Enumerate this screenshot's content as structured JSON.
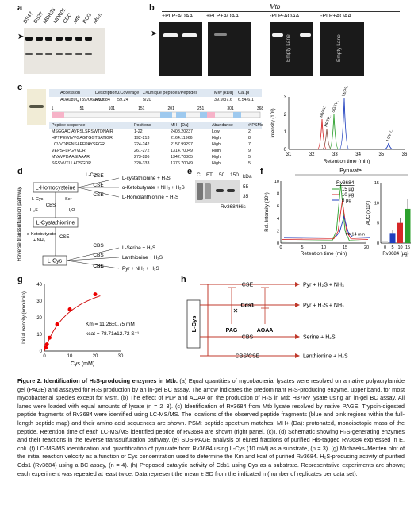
{
  "panels": {
    "a": {
      "label": "a",
      "lanes": [
        "DS47",
        "DS27",
        "MDR35",
        "MDR01",
        "CDC",
        "Mtb",
        "BCG",
        "Msm"
      ]
    },
    "b": {
      "label": "b",
      "title": "Mtb",
      "groups": [
        "+PLP-AOAA",
        "+PLP+AOAA",
        "-PLP-AOAA",
        "-PLP+AOAA"
      ],
      "empty_lane": "Empty Lane"
    },
    "c": {
      "label": "c",
      "headers": [
        "Accession",
        "Description",
        "ΣCoverage",
        "Σ#Unique peptides/Peptides",
        "MW [kDa]",
        "Cal.pI"
      ],
      "summary": [
        "A0A089QT59/O69652",
        "Rv3684",
        "59.24",
        "5/20",
        "39.9/37.6",
        "6.54/6.1"
      ],
      "ruler": [
        "1",
        "51",
        "101",
        "151",
        "201",
        "251",
        "301",
        "368"
      ],
      "pep_headers": [
        "Peptide sequence",
        "Positions",
        "MH+ [Da]",
        "Abundance",
        "# PSMs"
      ],
      "peptides": [
        [
          "MSGGACIAVRSLSRSWTDNAIR",
          "1-22",
          "2408.20237",
          "Low",
          "2"
        ],
        [
          "HPTPEWIVVGAGTGGTSATIGR",
          "192-213",
          "2164.11966",
          "High",
          "8"
        ],
        [
          "LCVVDPENSAFFPAYSEGR",
          "224-242",
          "2157.99297",
          "High",
          "7"
        ],
        [
          "VEPSFLPGVVDR",
          "261-272",
          "1314.70049",
          "High",
          "9"
        ],
        [
          "MVAVPDAASIAAAR",
          "273-286",
          "1342.70305",
          "High",
          "5"
        ],
        [
          "SGSVVTLLADSGDR",
          "320-333",
          "1376.70049",
          "High",
          "5"
        ]
      ],
      "chrom_ylabel": "Intensity (10⁸)",
      "chrom_xlabel": "Retention time (min)",
      "chrom_yticks": [
        "0",
        "1",
        "2",
        "3"
      ],
      "chrom_xticks": [
        "31",
        "32",
        "33",
        "34",
        "35",
        "36"
      ],
      "peak_labels": [
        "MVAV..",
        "HPTP..",
        "SGSV..",
        "VEPS..",
        "LCVV.."
      ]
    },
    "d": {
      "label": "d",
      "side_label": "Reverse transsulfuration pathway",
      "nodes": [
        "L-Homocysteine",
        "L-Cystathionine",
        "L-Cys"
      ],
      "enzymes": [
        "CSE",
        "CSE",
        "CSE",
        "CBS",
        "CSE",
        "CBS",
        "CBS",
        "CSE"
      ],
      "products": [
        "L-cystathionine + H₂S",
        "α-Ketobutyrate + NH₃ + H₂S",
        "L-Homolanthionine + H₂S",
        "L-Serine + H₂S",
        "Lanthionine + H₂S",
        "Pyr + NH₃ + H₂S"
      ],
      "side_terms": [
        "L-Cys",
        "L-Cys",
        "Ser",
        "H₂S",
        "H₂O",
        "α-Ketobutyrate",
        "+ NH₃"
      ]
    },
    "e": {
      "label": "e",
      "lanes": [
        "CL",
        "FT",
        "50",
        "150"
      ],
      "kda": "kDa",
      "markers": [
        "55",
        "35"
      ],
      "protein": "Rv3684His"
    },
    "f": {
      "label": "f",
      "title": "Pyruvate",
      "legend_title": "Rv3684",
      "legend": [
        "15 µg",
        "10 µg",
        "5 µg"
      ],
      "rt_note": "t = 14 min",
      "ylabel": "Rel. Intensity (10⁵)",
      "xlabel": "Retention time (min)",
      "xticks": [
        "0",
        "5",
        "10",
        "15",
        "20"
      ],
      "yticks": [
        "0",
        "2",
        "4",
        "6",
        "8",
        "10"
      ],
      "auc_ylabel": "AUC (x10⁵)",
      "auc_yticks": [
        "0",
        "5",
        "10",
        "15"
      ],
      "auc_xticks": [
        "0",
        "5",
        "10",
        "15"
      ],
      "auc_xlabel": "Rv3684 (µg)"
    },
    "g": {
      "label": "g",
      "ylabel": "Initial velocity (nmol/min)",
      "xlabel": "Cys (mM)",
      "xticks": [
        "0",
        "10",
        "20",
        "30"
      ],
      "yticks": [
        "0",
        "10",
        "20",
        "30",
        "40"
      ],
      "km": "Km   =  11.26±0.75 mM",
      "kcat": "kcat  =  78.71±12.72 S⁻¹"
    },
    "h": {
      "label": "h",
      "left": "L-Cys",
      "enzymes": [
        "CSE",
        "Cds1",
        "CBS",
        "CBS/CSE"
      ],
      "inhibitors": [
        "PAG",
        "AOAA"
      ],
      "products": [
        "Pyr + H₂S + NH₃",
        "Pyr + H₂S + NH₃",
        "Serine + H₂S",
        "Lanthionine + H₂S"
      ]
    }
  },
  "chart_data": [
    {
      "type": "line",
      "title": "Pyruvate",
      "xlabel": "Retention time (min)",
      "ylabel": "Rel. Intensity (10⁵)",
      "xlim": [
        0,
        20
      ],
      "ylim": [
        0,
        10
      ],
      "series": [
        {
          "name": "15 µg",
          "x": [
            0,
            12,
            13,
            14,
            15,
            16,
            20
          ],
          "y": [
            0.3,
            0.4,
            2,
            9.5,
            2,
            0.4,
            0.3
          ],
          "color": "#2ca02c"
        },
        {
          "name": "10 µg",
          "x": [
            0,
            12,
            13,
            14,
            15,
            16,
            20
          ],
          "y": [
            0.2,
            0.3,
            1.5,
            6.5,
            1.5,
            0.3,
            0.2
          ],
          "color": "#d62728"
        },
        {
          "name": "5 µg",
          "x": [
            0,
            12,
            13,
            14,
            15,
            16,
            20
          ],
          "y": [
            0.1,
            0.2,
            1,
            3.5,
            1,
            0.2,
            0.1
          ],
          "color": "#1f3fbf"
        }
      ]
    },
    {
      "type": "bar",
      "xlabel": "Rv3684 (µg)",
      "ylabel": "AUC (x10⁵)",
      "categories": [
        "0",
        "5",
        "10",
        "15"
      ],
      "values": [
        0.3,
        2.5,
        5,
        8.5
      ],
      "errors": [
        0.2,
        0.7,
        1.2,
        2.5
      ],
      "colors": [
        "#c0c0c0",
        "#1f3fbf",
        "#d62728",
        "#2ca02c"
      ],
      "ylim": [
        0,
        15
      ]
    },
    {
      "type": "scatter",
      "xlabel": "Cys (mM)",
      "ylabel": "Initial velocity (nmol/min)",
      "xlim": [
        0,
        30
      ],
      "ylim": [
        0,
        40
      ],
      "x": [
        0.5,
        1,
        2,
        5,
        10,
        20
      ],
      "y": [
        2,
        4,
        8,
        16,
        25,
        34
      ]
    }
  ]
}
